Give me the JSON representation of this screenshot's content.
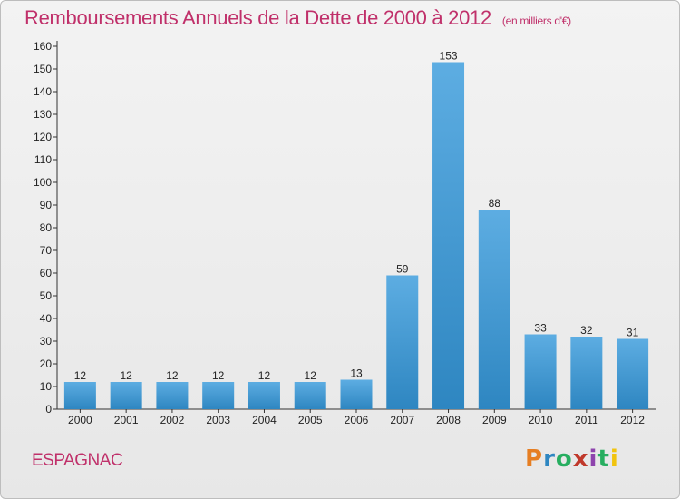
{
  "title": "Remboursements Annuels de la Dette de 2000 à 2012",
  "title_unit": "(en milliers d'€)",
  "commune": "ESPAGNAC",
  "logo": {
    "letters": [
      "P",
      "r",
      "o",
      "x",
      "i",
      "t",
      "i"
    ],
    "colors": [
      "#e67e22",
      "#2e86c1",
      "#27ae60",
      "#c0392b",
      "#8e44ad",
      "#27ae60",
      "#f1c40f"
    ]
  },
  "colors": {
    "title": "#c0306a",
    "bar_top": "#5dade2",
    "bar_bottom": "#2e86c1"
  },
  "chart_data": {
    "type": "bar",
    "title": "Remboursements Annuels de la Dette de 2000 à 2012",
    "xlabel": "",
    "ylabel": "",
    "categories": [
      "2000",
      "2001",
      "2002",
      "2003",
      "2004",
      "2005",
      "2006",
      "2007",
      "2008",
      "2009",
      "2010",
      "2011",
      "2012"
    ],
    "values": [
      12,
      12,
      12,
      12,
      12,
      12,
      13,
      59,
      153,
      88,
      33,
      32,
      31
    ],
    "ylim": [
      0,
      160
    ],
    "yticks": [
      0,
      10,
      20,
      30,
      40,
      50,
      60,
      70,
      80,
      90,
      100,
      110,
      120,
      130,
      140,
      150,
      160
    ],
    "grid": false,
    "legend": "none"
  }
}
